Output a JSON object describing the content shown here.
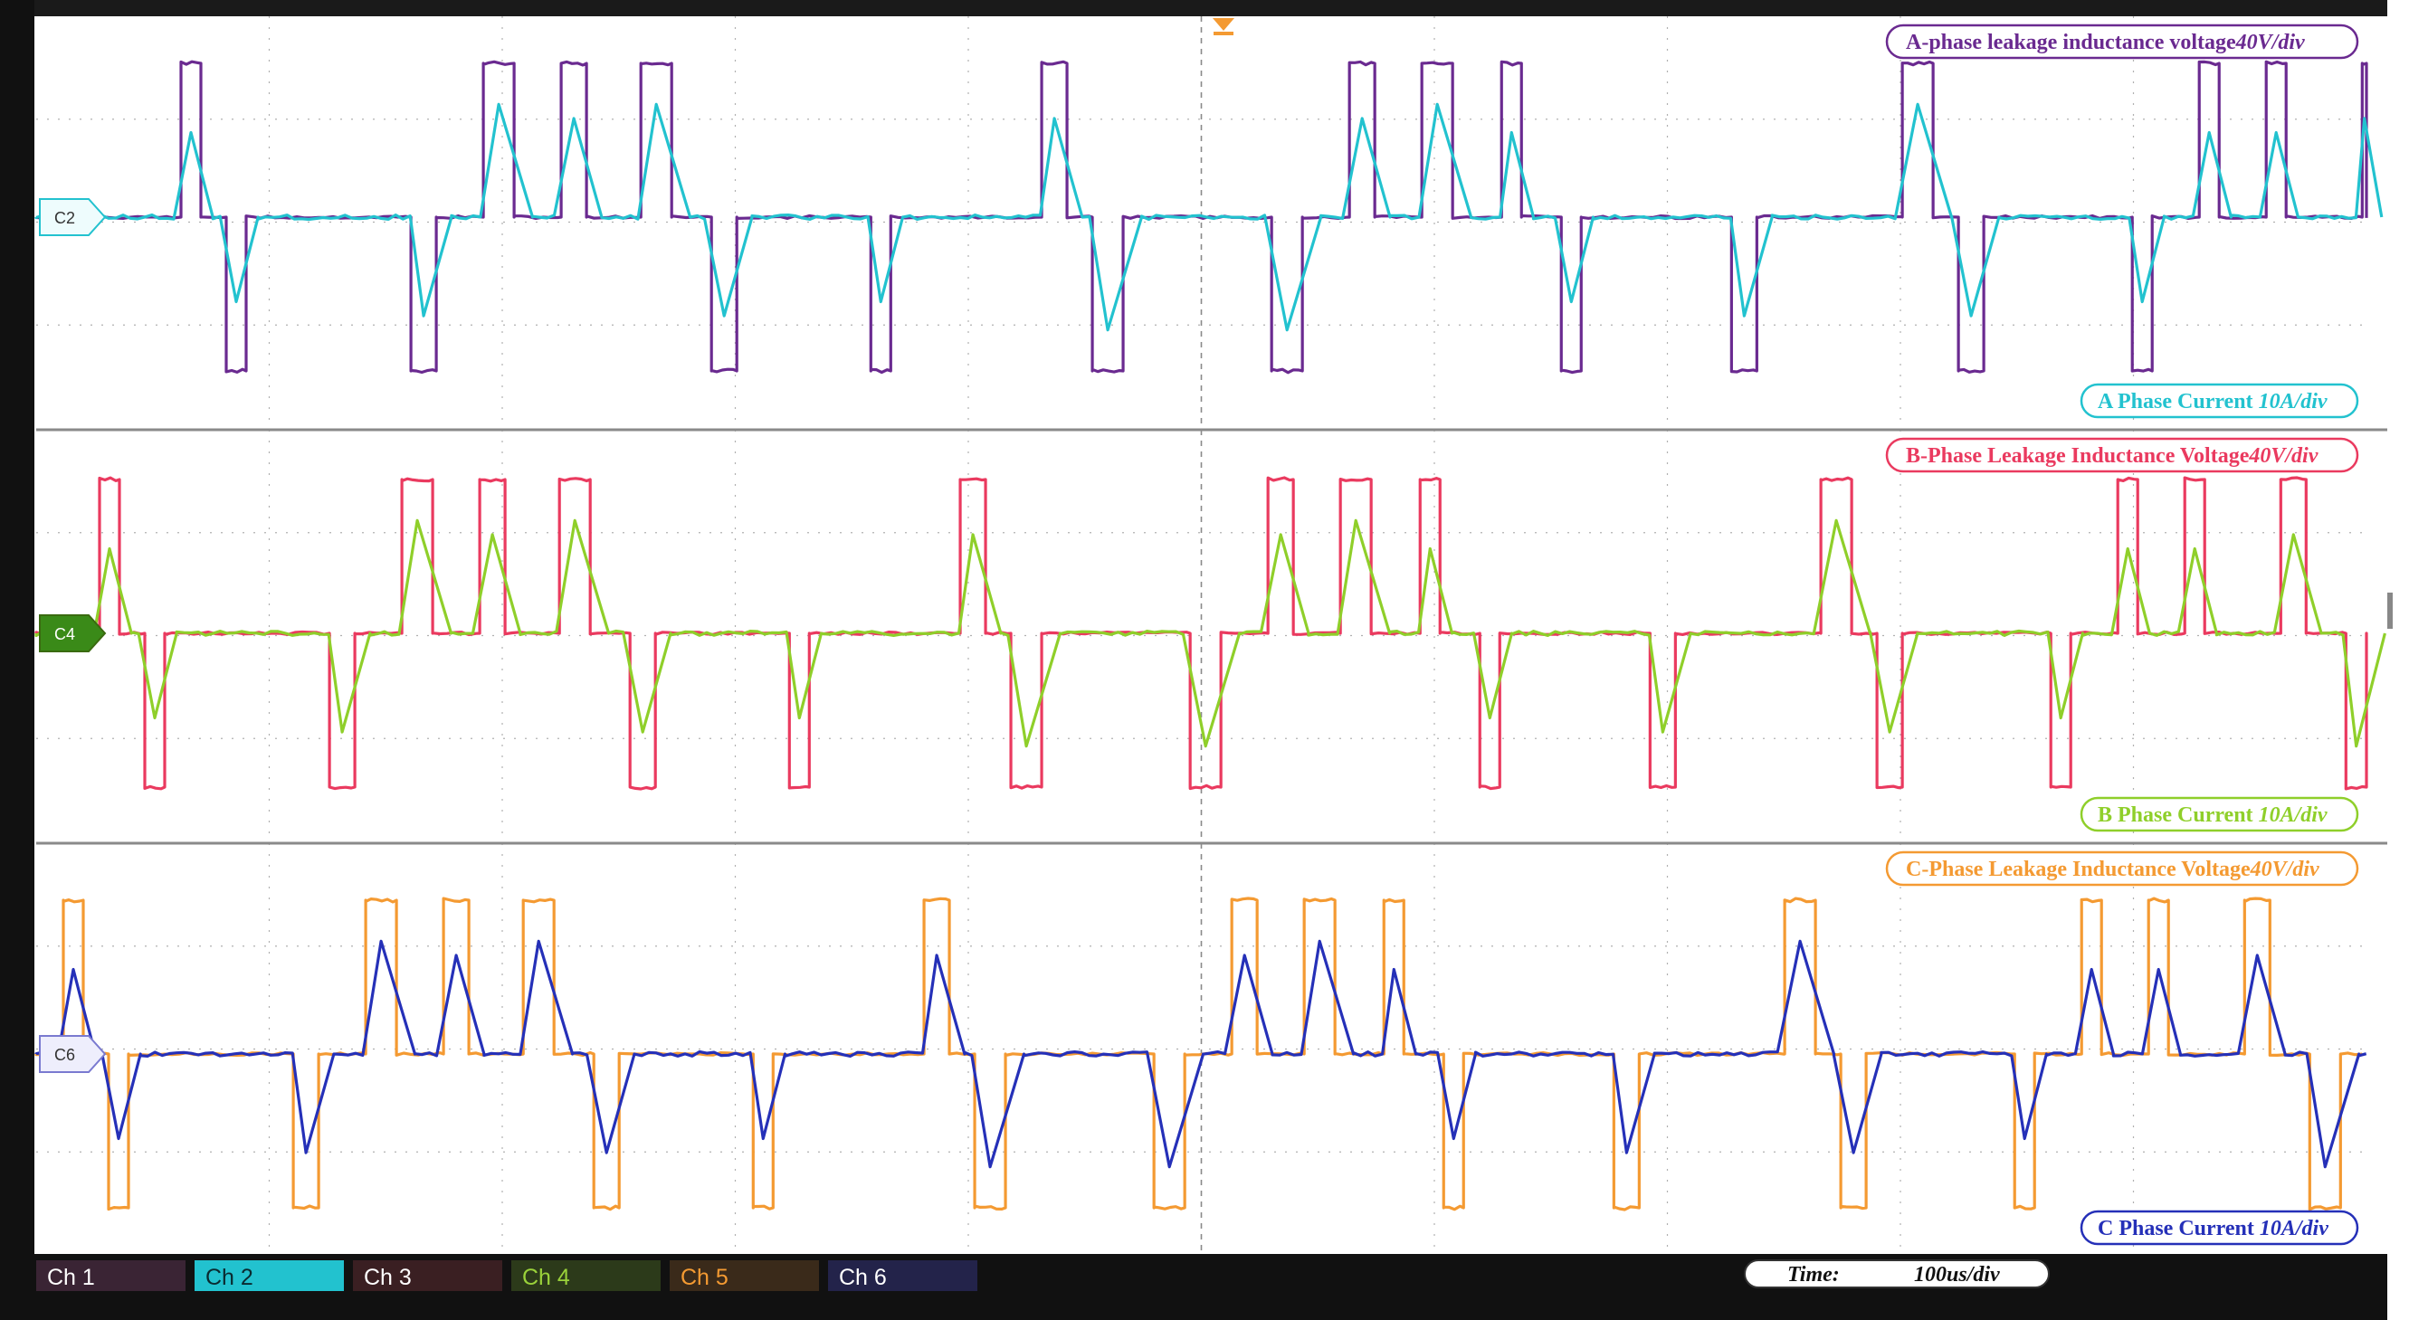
{
  "colors": {
    "a_voltage": "#6a2a90",
    "a_current": "#22c2cf",
    "b_voltage": "#ea3a5f",
    "b_current": "#8fcf2a",
    "c_voltage": "#f49a32",
    "c_current": "#2530b8",
    "grid": "#b0b0b0",
    "divider": "#8a8a8a",
    "tabbar": "#111111"
  },
  "panels": [
    {
      "voltage_label": "A-phase leakage inductance voltage",
      "voltage_scale": "40V/div",
      "current_label": "A Phase Current ",
      "current_scale": "10A/div",
      "marker": "C2"
    },
    {
      "voltage_label": "B-Phase Leakage Inductance Voltage",
      "voltage_scale": "40V/div",
      "current_label": "B Phase Current ",
      "current_scale": "10A/div",
      "marker": "C4"
    },
    {
      "voltage_label": "C-Phase Leakage Inductance Voltage",
      "voltage_scale": "40V/div",
      "current_label": "C Phase Current ",
      "current_scale": "10A/div",
      "marker": "C6"
    }
  ],
  "channels": [
    {
      "label": "Ch 1",
      "bg": "#3a2434",
      "fg": "#ffffff"
    },
    {
      "label": "Ch 2",
      "bg": "#22c2cf",
      "fg": "#0a2a30"
    },
    {
      "label": "Ch 3",
      "bg": "#3a1f22",
      "fg": "#ffffff"
    },
    {
      "label": "Ch 4",
      "bg": "#2c3a1a",
      "fg": "#9ad23a"
    },
    {
      "label": "Ch 5",
      "bg": "#3a2a1a",
      "fg": "#f49a32"
    },
    {
      "label": "Ch 6",
      "bg": "#23234a",
      "fg": "#ffffff"
    }
  ],
  "timebase": {
    "label": "Time:",
    "value": "100us/div"
  }
}
